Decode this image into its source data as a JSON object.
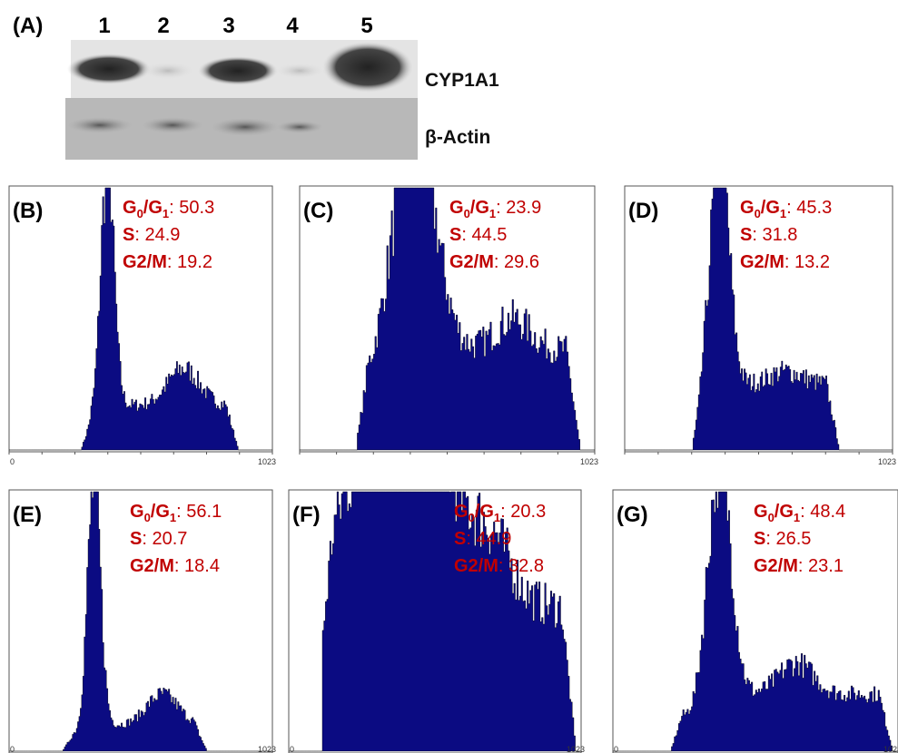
{
  "blot": {
    "label": "(A)",
    "lanes": [
      "1",
      "2",
      "3",
      "4",
      "5"
    ],
    "proteins": [
      "CYP1A1",
      "β-Actin"
    ]
  },
  "panels": [
    {
      "label": "(B)",
      "stats": [
        {
          "parts": [
            "G",
            "0",
            "/G",
            "1"
          ],
          "value": ": 50.3"
        },
        {
          "parts": [
            "S"
          ],
          "value": ": 24.9"
        },
        {
          "parts": [
            "G2/M"
          ],
          "value": ": 19.2"
        }
      ],
      "axis": [
        "0",
        "1023"
      ]
    },
    {
      "label": "(C)",
      "stats": [
        {
          "parts": [
            "G",
            "0",
            "/G",
            "1"
          ],
          "value": ": 23.9"
        },
        {
          "parts": [
            "S"
          ],
          "value": ": 44.5"
        },
        {
          "parts": [
            "G2/M"
          ],
          "value": ": 29.6"
        }
      ],
      "axis": [
        "1023"
      ]
    },
    {
      "label": "(D)",
      "stats": [
        {
          "parts": [
            "G",
            "0",
            "/G",
            "1"
          ],
          "value": ": 45.3"
        },
        {
          "parts": [
            "S"
          ],
          "value": ": 31.8"
        },
        {
          "parts": [
            "G2/M"
          ],
          "value": ": 13.2"
        }
      ],
      "axis": [
        "1023"
      ]
    },
    {
      "label": "(E)",
      "stats": [
        {
          "parts": [
            "G",
            "0",
            "/G",
            "1"
          ],
          "value": ": 56.1"
        },
        {
          "parts": [
            "S"
          ],
          "value": ": 20.7"
        },
        {
          "parts": [
            "G2/M"
          ],
          "value": ": 18.4"
        }
      ],
      "axis": [
        "0",
        "1023"
      ]
    },
    {
      "label": "(F)",
      "stats": [
        {
          "parts": [
            "G",
            "0",
            "/G",
            "1"
          ],
          "value": ": 20.3"
        },
        {
          "parts": [
            "S"
          ],
          "value": ": 44.9"
        },
        {
          "parts": [
            "G2/M"
          ],
          "value": ": 32.8"
        }
      ],
      "axis": [
        "0",
        "1023"
      ]
    },
    {
      "label": "(G)",
      "stats": [
        {
          "parts": [
            "G",
            "0",
            "/G",
            "1"
          ],
          "value": ": 48.4"
        },
        {
          "parts": [
            "S"
          ],
          "value": ": 26.5"
        },
        {
          "parts": [
            "G2/M"
          ],
          "value": ": 23.1"
        }
      ],
      "axis": [
        "0",
        "1023"
      ]
    }
  ]
}
